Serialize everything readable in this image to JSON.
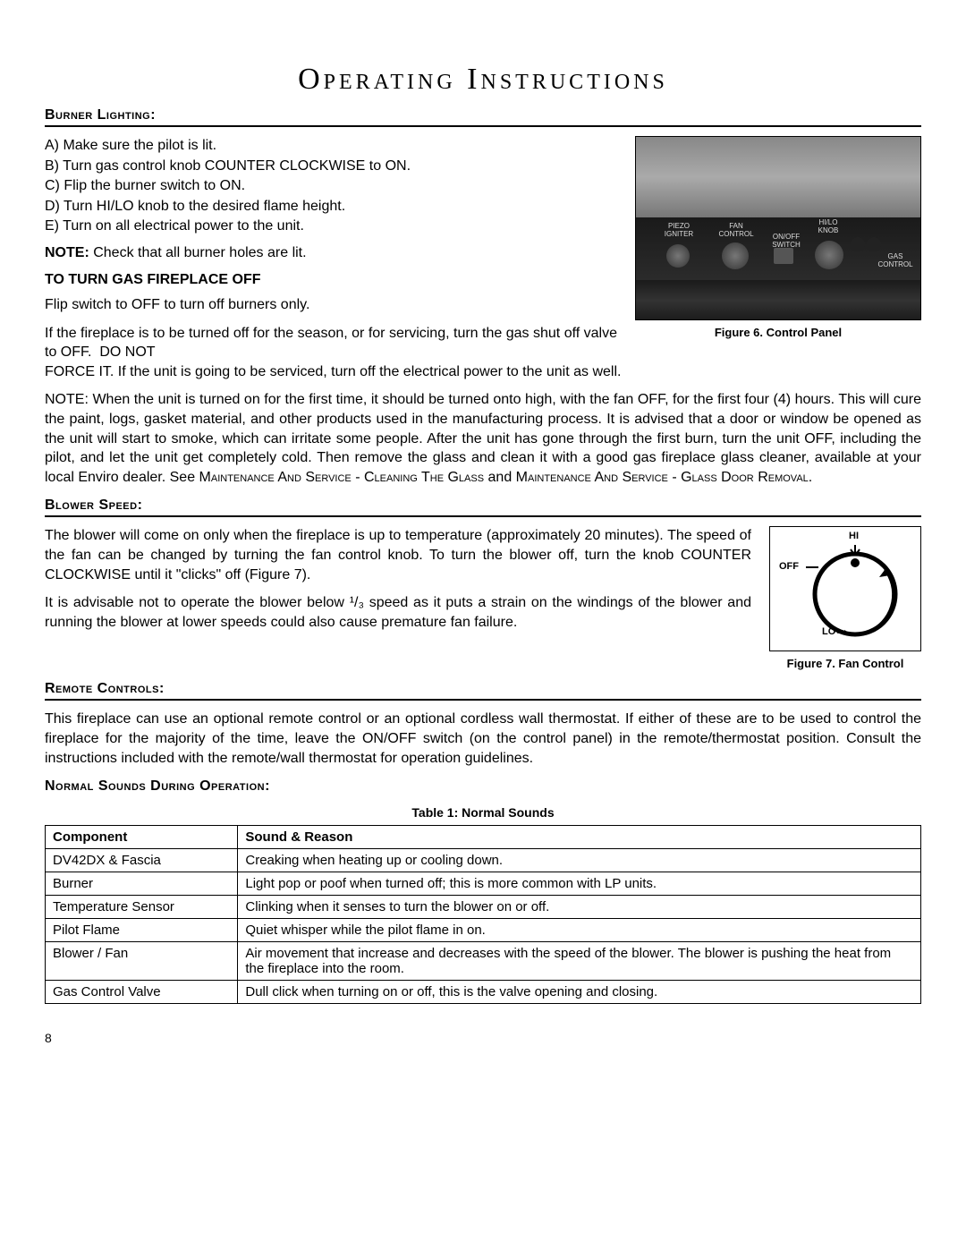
{
  "page": {
    "title": "Operating Instructions",
    "number": "8"
  },
  "burner": {
    "heading": "Burner Lighting:",
    "steps": [
      "A)  Make sure the pilot is lit.",
      "B)  Turn gas control knob COUNTER CLOCKWISE to ON.",
      "C)  Flip the burner switch to ON.",
      "D)  Turn HI/LO knob to the desired flame height.",
      "E)  Turn on all electrical power to the unit."
    ],
    "note_label": "NOTE:",
    "note_text": " Check that all burner holes are lit.",
    "off_heading": "TO TURN GAS FIREPLACE OFF",
    "off_p1": "Flip switch to OFF to turn off burners only.",
    "off_p2": "If the fireplace is to be turned off for the season, or for servicing, turn the gas shut off valve to OFF.  DO NOT FORCE IT. If the unit is going to be serviced, turn off the electrical power to the unit as well.",
    "note2_label": "NOTE:",
    "note2_text": " When the unit is turned on for the first time, it should be turned onto high, with the fan OFF, for the first four (4) hours. This will cure the paint, logs, gasket material, and other products used in the manufacturing process. It is advised that a door or window be opened as the unit will start to smoke, which can irritate some people. After the unit has gone through the first burn, turn the unit OFF, including the pilot, and let the unit get completely cold. Then remove the glass and clean it with a good gas fireplace glass cleaner, available at your local Enviro dealer. See ",
    "note2_sc1": "Maintenance And Service - Cleaning The Glass",
    "note2_mid": " and ",
    "note2_sc2": "Maintenance And Service - Glass Door Removal",
    "note2_end": "."
  },
  "figure6": {
    "caption": "Figure 6.  Control Panel",
    "labels": {
      "piezo": "PIEZO IGNITER",
      "fan": "FAN CONTROL",
      "switch": "ON/OFF SWITCH",
      "hilo": "HI/LO KNOB",
      "gas": "GAS CONTROL"
    }
  },
  "blower": {
    "heading": "Blower Speed:",
    "p1": "The blower will come on only when the fireplace is up to temperature (approximately 20 minutes).  The speed of the fan can be changed by turning the fan control knob.  To turn the blower off, turn the knob COUNTER CLOCKWISE until it \"clicks\" off (Figure 7).",
    "p2_a": "It is advisable not to operate the blower below ",
    "p2_frac": "¹/₃",
    "p2_b": " speed as it puts a strain on the windings of the blower and running the blower at lower speeds could also cause premature fan failure."
  },
  "figure7": {
    "caption": "Figure 7. Fan Control",
    "hi": "HI",
    "off": "OFF",
    "lo": "LO"
  },
  "remote": {
    "heading": "Remote Controls:",
    "p": "This fireplace can use an optional remote control or an optional cordless wall thermostat.  If either of these are to be used to control the fireplace for the majority of the time, leave the ON/OFF switch (on the control panel) in the remote/thermostat position.  Consult the instructions included with the remote/wall thermostat for operation guidelines."
  },
  "sounds": {
    "heading": "Normal Sounds During Operation:",
    "caption": "Table 1: Normal Sounds",
    "col1": "Component",
    "col2": "Sound & Reason",
    "rows": [
      [
        "DV42DX & Fascia",
        "Creaking when heating up or cooling down."
      ],
      [
        "Burner",
        "Light pop or poof when turned off; this is more common with LP units."
      ],
      [
        "Temperature Sensor",
        "Clinking when it senses to turn the blower on or off."
      ],
      [
        "Pilot Flame",
        "Quiet whisper while the pilot flame in on."
      ],
      [
        "Blower / Fan",
        "Air movement that increase and decreases with the speed of the blower. The blower is pushing the heat from the fireplace into the room."
      ],
      [
        "Gas Control Valve",
        "Dull click when turning on or off, this is the valve opening and closing."
      ]
    ]
  },
  "colors": {
    "text": "#000000",
    "bg": "#ffffff",
    "rule": "#000000",
    "panel_dark": "#222222",
    "panel_metal": "#999999"
  }
}
